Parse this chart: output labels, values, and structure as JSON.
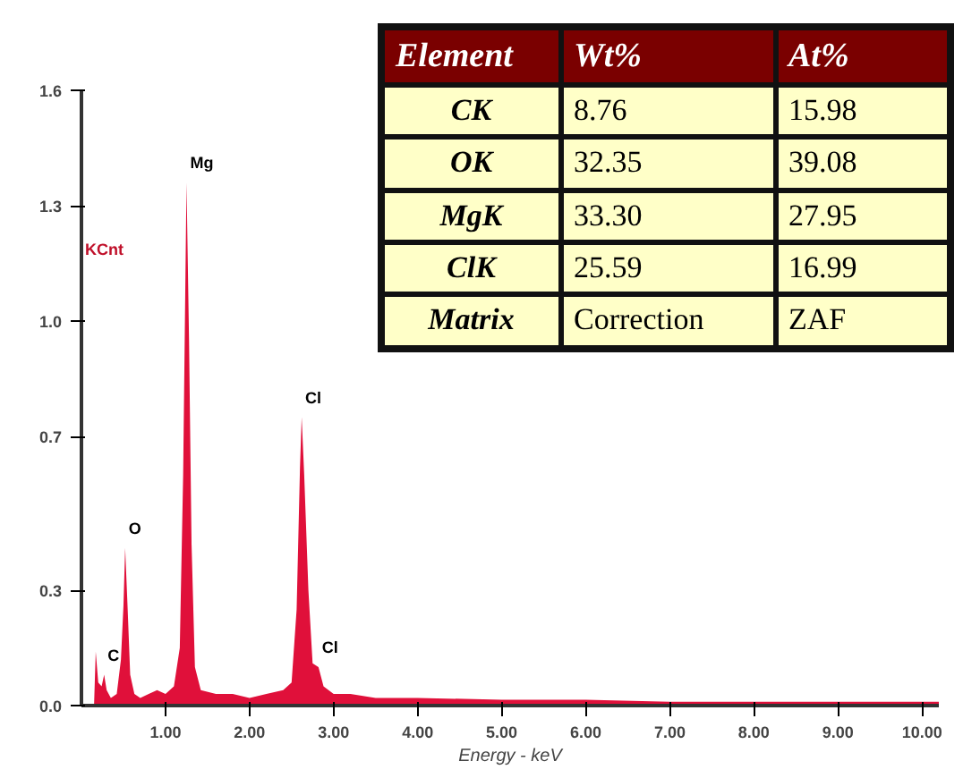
{
  "chart_data": [
    {
      "type": "area",
      "xlabel": "Energy - keV",
      "ylabel": "KCnt",
      "color": "#e0103a",
      "x": [
        0.15,
        0.17,
        0.2,
        0.24,
        0.27,
        0.3,
        0.35,
        0.42,
        0.47,
        0.5,
        0.52,
        0.55,
        0.58,
        0.63,
        0.7,
        0.8,
        0.9,
        1.0,
        1.1,
        1.17,
        1.21,
        1.25,
        1.28,
        1.31,
        1.35,
        1.42,
        1.6,
        1.8,
        2.0,
        2.2,
        2.4,
        2.5,
        2.56,
        2.6,
        2.62,
        2.65,
        2.7,
        2.75,
        2.82,
        2.88,
        3.0,
        3.2,
        3.5,
        4.0,
        5.0,
        6.0,
        7.0,
        8.0,
        9.0,
        10.2
      ],
      "values": [
        0,
        0.14,
        0.06,
        0.05,
        0.08,
        0.04,
        0.02,
        0.03,
        0.12,
        0.26,
        0.41,
        0.25,
        0.08,
        0.03,
        0.02,
        0.03,
        0.04,
        0.03,
        0.05,
        0.15,
        0.6,
        1.36,
        0.95,
        0.42,
        0.1,
        0.04,
        0.03,
        0.03,
        0.02,
        0.03,
        0.04,
        0.06,
        0.25,
        0.62,
        0.75,
        0.6,
        0.3,
        0.11,
        0.1,
        0.05,
        0.03,
        0.03,
        0.02,
        0.02,
        0.015,
        0.015,
        0.01,
        0.01,
        0.01,
        0.01
      ],
      "xlim": [
        0,
        10.2
      ],
      "ylim": [
        0,
        1.6
      ],
      "xticks": [
        {
          "value": 1,
          "label": "1.00"
        },
        {
          "value": 2,
          "label": "2.00"
        },
        {
          "value": 3,
          "label": "3.00"
        },
        {
          "value": 4,
          "label": "4.00"
        },
        {
          "value": 5,
          "label": "5.00"
        },
        {
          "value": 6,
          "label": "6.00"
        },
        {
          "value": 7,
          "label": "7.00"
        },
        {
          "value": 8,
          "label": "8.00"
        },
        {
          "value": 9,
          "label": "9.00"
        },
        {
          "value": 10,
          "label": "10.00"
        }
      ],
      "yticks": [
        {
          "value": 0,
          "label": "0.0"
        },
        0.3,
        0.7,
        {
          "value": 1,
          "label": "1.0"
        },
        1.3,
        1.6
      ],
      "grid": false,
      "annotations": [
        {
          "text": "C",
          "x": 0.27,
          "y": 0.08
        },
        {
          "text": "O",
          "x": 0.52,
          "y": 0.41
        },
        {
          "text": "Mg",
          "x": 1.25,
          "y": 1.36
        },
        {
          "text": "Cl",
          "x": 2.62,
          "y": 0.75
        },
        {
          "text": "Cl",
          "x": 2.82,
          "y": 0.1
        }
      ]
    },
    {
      "type": "other",
      "annotations": [
        "Element",
        "Wt%",
        "At%",
        "CK",
        "8.76",
        "15.98",
        "OK",
        "32.35",
        "39.08",
        "MgK",
        "33.30",
        "27.95",
        "ClK",
        "25.59",
        "16.99",
        "Matrix",
        "Correction",
        "ZAF"
      ]
    }
  ]
}
